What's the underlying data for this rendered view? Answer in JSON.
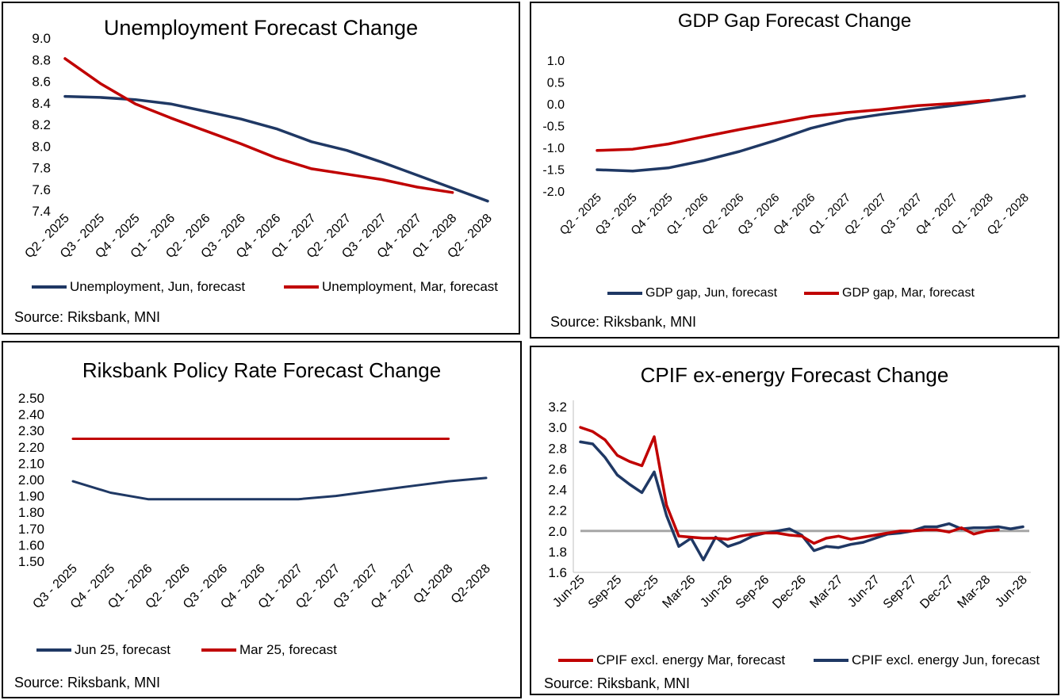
{
  "colors": {
    "jun": "#1f3864",
    "mar": "#c00000",
    "target": "#a6a6a6",
    "border": "#000000"
  },
  "chart_data": [
    {
      "id": "unemployment",
      "type": "line",
      "title": "Unemployment Forecast Change",
      "categories": [
        "Q2 - 2025",
        "Q3 - 2025",
        "Q4 - 2025",
        "Q1 - 2026",
        "Q2 - 2026",
        "Q3 - 2026",
        "Q4 - 2026",
        "Q1 - 2027",
        "Q2 - 2027",
        "Q3 - 2027",
        "Q4 - 2027",
        "Q1 - 2028",
        "Q2 - 2028"
      ],
      "ylim": [
        7.4,
        9.0
      ],
      "yticks": [
        7.4,
        7.6,
        7.8,
        8.0,
        8.2,
        8.4,
        8.6,
        8.8,
        9.0
      ],
      "ydecimals": 1,
      "xlabel": "",
      "ylabel": "",
      "series": [
        {
          "name": "Unemployment, Jun, forecast",
          "color": "#1f3864",
          "values": [
            8.46,
            8.45,
            8.43,
            8.39,
            8.32,
            8.25,
            8.16,
            8.04,
            7.96,
            7.85,
            7.73,
            7.61,
            7.49
          ]
        },
        {
          "name": "Unemployment, Mar, forecast",
          "color": "#c00000",
          "values": [
            8.81,
            8.58,
            8.39,
            8.26,
            8.14,
            8.02,
            7.89,
            7.79,
            7.74,
            7.69,
            7.62,
            7.57,
            null
          ]
        }
      ],
      "legend_order": [
        0,
        1
      ],
      "source": "Source: Riksbank, MNI"
    },
    {
      "id": "gdp_gap",
      "type": "line",
      "title": "GDP Gap Forecast Change",
      "categories": [
        "Q2 - 2025",
        "Q3 - 2025",
        "Q4 - 2025",
        "Q1 - 2026",
        "Q2 - 2026",
        "Q3 - 2026",
        "Q4 - 2026",
        "Q1 - 2027",
        "Q2 - 2027",
        "Q3 - 2027",
        "Q4 - 2027",
        "Q1 - 2028",
        "Q2 - 2028"
      ],
      "ylim": [
        -2.0,
        1.0
      ],
      "yticks": [
        -2.0,
        -1.5,
        -1.0,
        -0.5,
        0.0,
        0.5,
        1.0
      ],
      "ydecimals": 1,
      "xlabel": "",
      "ylabel": "",
      "series": [
        {
          "name": "GDP gap, Jun, forecast",
          "color": "#1f3864",
          "values": [
            -1.51,
            -1.54,
            -1.47,
            -1.3,
            -1.09,
            -0.84,
            -0.56,
            -0.36,
            -0.24,
            -0.14,
            -0.04,
            0.07,
            0.18
          ]
        },
        {
          "name": "GDP gap, Mar, forecast",
          "color": "#c00000",
          "values": [
            -1.07,
            -1.04,
            -0.92,
            -0.75,
            -0.59,
            -0.44,
            -0.29,
            -0.2,
            -0.13,
            -0.04,
            0.01,
            0.08,
            null
          ]
        }
      ],
      "legend_order": [
        0,
        1
      ],
      "source": "Source: Riksbank, MNI"
    },
    {
      "id": "policy_rate",
      "type": "line",
      "title": "Riksbank Policy Rate Forecast Change",
      "categories": [
        "Q3 - 2025",
        "Q4 - 2025",
        "Q1 - 2026",
        "Q2 - 2026",
        "Q3 - 2026",
        "Q4 - 2026",
        "Q1 - 2027",
        "Q2 - 2027",
        "Q3 - 2027",
        "Q4 - 2027",
        "Q1-2028",
        "Q2-2028"
      ],
      "ylim": [
        1.5,
        2.5
      ],
      "yticks": [
        1.5,
        1.6,
        1.7,
        1.8,
        1.9,
        2.0,
        2.1,
        2.2,
        2.3,
        2.4,
        2.5
      ],
      "ydecimals": 2,
      "xlabel": "",
      "ylabel": "",
      "series": [
        {
          "name": "Jun 25, forecast",
          "color": "#1f3864",
          "values": [
            1.99,
            1.92,
            1.88,
            1.88,
            1.88,
            1.88,
            1.88,
            1.9,
            1.93,
            1.96,
            1.99,
            2.01
          ]
        },
        {
          "name": "Mar 25, forecast",
          "color": "#c00000",
          "values": [
            2.25,
            2.25,
            2.25,
            2.25,
            2.25,
            2.25,
            2.25,
            2.25,
            2.25,
            2.25,
            2.25,
            null
          ]
        }
      ],
      "legend_order": [
        0,
        1
      ],
      "source": "Source: Riksbank, MNI"
    },
    {
      "id": "cpif",
      "type": "line",
      "title": "CPIF ex-energy Forecast Change",
      "categories": [
        "Jun-25",
        "Jul-25",
        "Aug-25",
        "Sep-25",
        "Oct-25",
        "Nov-25",
        "Dec-25",
        "Jan-26",
        "Feb-26",
        "Mar-26",
        "Apr-26",
        "May-26",
        "Jun-26",
        "Jul-26",
        "Aug-26",
        "Sep-26",
        "Oct-26",
        "Nov-26",
        "Dec-26",
        "Jan-27",
        "Feb-27",
        "Mar-27",
        "Apr-27",
        "May-27",
        "Jun-27",
        "Jul-27",
        "Aug-27",
        "Sep-27",
        "Oct-27",
        "Nov-27",
        "Dec-27",
        "Jan-28",
        "Feb-28",
        "Mar-28",
        "Apr-28",
        "May-28",
        "Jun-28"
      ],
      "tick_labels": [
        "Jun-25",
        "Sep-25",
        "Dec-25",
        "Mar-26",
        "Jun-26",
        "Sep-26",
        "Dec-26",
        "Mar-27",
        "Jun-27",
        "Sep-27",
        "Dec-27",
        "Mar-28",
        "Jun-28"
      ],
      "tick_every": 3,
      "ylim": [
        1.6,
        3.2
      ],
      "yticks": [
        1.6,
        1.8,
        2.0,
        2.2,
        2.4,
        2.6,
        2.8,
        3.0,
        3.2
      ],
      "ydecimals": 1,
      "xlabel": "",
      "ylabel": "",
      "reference_line": {
        "value": 2.0,
        "color": "#a6a6a6"
      },
      "series": [
        {
          "name": "CPIF excl. energy Jun, forecast",
          "color": "#1f3864",
          "values": [
            2.86,
            2.84,
            2.71,
            2.54,
            2.45,
            2.37,
            2.57,
            2.15,
            1.85,
            1.93,
            1.72,
            1.94,
            1.85,
            1.89,
            1.95,
            1.98,
            2.0,
            2.02,
            1.96,
            1.81,
            1.85,
            1.84,
            1.87,
            1.89,
            1.93,
            1.97,
            1.98,
            2.0,
            2.04,
            2.04,
            2.07,
            2.02,
            2.03,
            2.03,
            2.04,
            2.02,
            2.04
          ]
        },
        {
          "name": "CPIF excl. energy Mar, forecast",
          "color": "#c00000",
          "values": [
            3.0,
            2.96,
            2.88,
            2.73,
            2.67,
            2.63,
            2.91,
            2.25,
            1.95,
            1.94,
            1.93,
            1.93,
            1.92,
            1.95,
            1.97,
            1.98,
            1.98,
            1.96,
            1.95,
            1.88,
            1.93,
            1.95,
            1.92,
            1.94,
            1.96,
            1.98,
            2.0,
            2.0,
            2.01,
            2.01,
            1.99,
            2.03,
            1.97,
            2.0,
            2.01,
            null,
            null
          ]
        }
      ],
      "legend_order": [
        1,
        0
      ],
      "source": "Source: Riksbank, MNI"
    }
  ]
}
